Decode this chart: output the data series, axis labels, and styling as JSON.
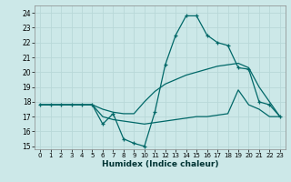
{
  "xlabel": "Humidex (Indice chaleur)",
  "background_color": "#cce8e8",
  "grid_color": "#b8d8d8",
  "line_color": "#006868",
  "xlim": [
    -0.5,
    23.5
  ],
  "ylim": [
    14.8,
    24.5
  ],
  "yticks": [
    15,
    16,
    17,
    18,
    19,
    20,
    21,
    22,
    23,
    24
  ],
  "xticks": [
    0,
    1,
    2,
    3,
    4,
    5,
    6,
    7,
    8,
    9,
    10,
    11,
    12,
    13,
    14,
    15,
    16,
    17,
    18,
    19,
    20,
    21,
    22,
    23
  ],
  "line1_x": [
    0,
    1,
    2,
    3,
    4,
    5,
    6,
    7,
    8,
    9,
    10,
    11,
    12,
    13,
    14,
    15,
    16,
    17,
    18,
    19,
    20,
    21,
    22,
    23
  ],
  "line1_y": [
    17.8,
    17.8,
    17.8,
    17.8,
    17.8,
    17.8,
    16.5,
    17.2,
    15.5,
    15.2,
    15.0,
    17.3,
    20.5,
    22.5,
    23.8,
    23.8,
    22.5,
    22.0,
    21.8,
    20.3,
    20.2,
    18.0,
    17.8,
    17.0
  ],
  "line2_x": [
    0,
    1,
    2,
    3,
    4,
    5,
    6,
    7,
    8,
    9,
    10,
    11,
    12,
    13,
    14,
    15,
    16,
    17,
    18,
    19,
    20,
    21,
    22,
    23
  ],
  "line2_y": [
    17.8,
    17.8,
    17.8,
    17.8,
    17.8,
    17.8,
    17.5,
    17.3,
    17.2,
    17.2,
    18.0,
    18.7,
    19.2,
    19.5,
    19.8,
    20.0,
    20.2,
    20.4,
    20.5,
    20.6,
    20.3,
    19.0,
    18.0,
    17.0
  ],
  "line3_x": [
    0,
    1,
    2,
    3,
    4,
    5,
    6,
    7,
    8,
    9,
    10,
    11,
    12,
    13,
    14,
    15,
    16,
    17,
    18,
    19,
    20,
    21,
    22,
    23
  ],
  "line3_y": [
    17.8,
    17.8,
    17.8,
    17.8,
    17.8,
    17.8,
    17.0,
    16.8,
    16.7,
    16.6,
    16.5,
    16.6,
    16.7,
    16.8,
    16.9,
    17.0,
    17.0,
    17.1,
    17.2,
    18.8,
    17.8,
    17.5,
    17.0,
    17.0
  ]
}
